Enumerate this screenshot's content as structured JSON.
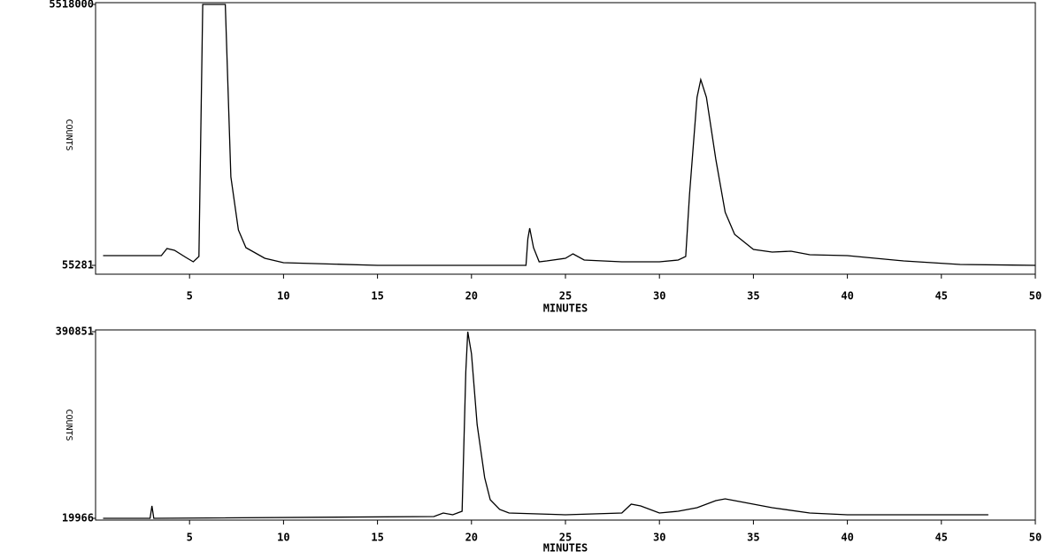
{
  "chart_data": [
    {
      "type": "line",
      "y_label": "COUNTS",
      "x_label": "MINUTES",
      "color": "#000000",
      "xlim": [
        0,
        50
      ],
      "xticks": [
        5,
        10,
        15,
        20,
        25,
        30,
        35,
        40,
        45,
        50
      ],
      "ylim": [
        55281,
        5518000
      ],
      "yticks": [
        55281,
        5518000
      ],
      "x": [
        0.4,
        3.5,
        3.8,
        4.2,
        4.8,
        5.2,
        5.5,
        5.7,
        6.9,
        7.2,
        7.6,
        8,
        9,
        10,
        15,
        20,
        22.9,
        23.0,
        23.1,
        23.3,
        23.6,
        24,
        25,
        25.4,
        26,
        28,
        30,
        31,
        31.4,
        31.6,
        32,
        32.2,
        32.5,
        33,
        33.5,
        34,
        35,
        36,
        37,
        38,
        40,
        43,
        46,
        50
      ],
      "values": [
        259000,
        259000,
        407000,
        370000,
        222000,
        129000,
        240000,
        5518000,
        5518000,
        1907000,
        796000,
        426000,
        203000,
        111000,
        55281,
        55281,
        55281,
        611000,
        833000,
        426000,
        129000,
        148000,
        203000,
        296000,
        166000,
        129000,
        129000,
        166000,
        240000,
        1537000,
        3574000,
        3944000,
        3574000,
        2277000,
        1166000,
        703000,
        389000,
        333000,
        352000,
        277000,
        259000,
        148000,
        74000,
        55281
      ]
    },
    {
      "type": "line",
      "y_label": "COUNTS",
      "x_label": "MINUTES",
      "color": "#000000",
      "xlim": [
        0,
        50
      ],
      "xticks": [
        5,
        10,
        15,
        20,
        25,
        30,
        35,
        40,
        45,
        50
      ],
      "ylim": [
        19966,
        390851
      ],
      "yticks": [
        19966,
        390851
      ],
      "x": [
        0.4,
        2.9,
        3.0,
        3.1,
        18,
        18.5,
        19,
        19.5,
        19.7,
        19.8,
        20,
        20.3,
        20.7,
        21,
        21.5,
        22,
        25,
        28,
        28.5,
        29,
        30,
        31,
        32,
        33,
        33.5,
        34,
        36,
        38,
        40,
        45,
        47.5
      ],
      "values": [
        19966,
        19966,
        44600,
        19966,
        23500,
        30500,
        27000,
        34000,
        311800,
        390851,
        347000,
        206300,
        100800,
        56900,
        37500,
        30500,
        27000,
        30500,
        48100,
        44600,
        30500,
        34000,
        41100,
        55100,
        58600,
        55100,
        41100,
        30500,
        27000,
        27000,
        27000
      ]
    }
  ]
}
